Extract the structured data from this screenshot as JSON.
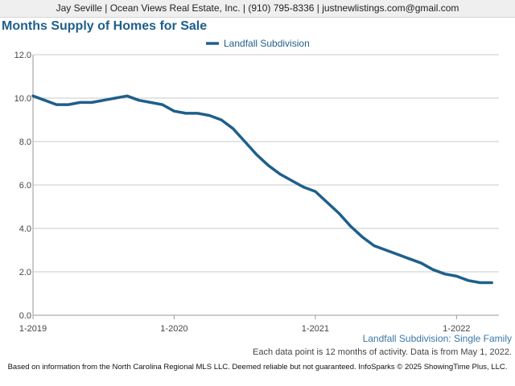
{
  "header": {
    "contact_line": "Jay Seville | Ocean Views Real Estate, Inc. | (910) 795-8336 | justnewlistings.com@gmail.com"
  },
  "chart_title": "Months Supply of Homes for Sale",
  "chart_subtitle": "Landfall Subdivision: Single Family",
  "note": "Each data point is 12 months of activity. Data is from May 1, 2022.",
  "footer": "Based on information from the North Carolina Regional MLS LLC. Deemed reliable but not guaranteed. InfoSparks © 2025 ShowingTime Plus, LLC.",
  "chart_data": {
    "type": "line",
    "x": [
      "2019-01",
      "2019-02",
      "2019-03",
      "2019-04",
      "2019-05",
      "2019-06",
      "2019-07",
      "2019-08",
      "2019-09",
      "2019-10",
      "2019-11",
      "2019-12",
      "2020-01",
      "2020-02",
      "2020-03",
      "2020-04",
      "2020-05",
      "2020-06",
      "2020-07",
      "2020-08",
      "2020-09",
      "2020-10",
      "2020-11",
      "2020-12",
      "2021-01",
      "2021-02",
      "2021-03",
      "2021-04",
      "2021-05",
      "2021-06",
      "2021-07",
      "2021-08",
      "2021-09",
      "2021-10",
      "2021-11",
      "2021-12",
      "2022-01",
      "2022-02",
      "2022-03",
      "2022-04"
    ],
    "x_tick_labels": [
      "1-2019",
      "1-2020",
      "1-2021",
      "1-2022"
    ],
    "series": [
      {
        "name": "Landfall Subdivision",
        "color": "#1f5f8b",
        "values": [
          10.1,
          9.9,
          9.7,
          9.7,
          9.8,
          9.8,
          9.9,
          10.0,
          10.1,
          9.9,
          9.8,
          9.7,
          9.4,
          9.3,
          9.3,
          9.2,
          9.0,
          8.6,
          8.0,
          7.4,
          6.9,
          6.5,
          6.2,
          5.9,
          5.7,
          5.2,
          4.7,
          4.1,
          3.6,
          3.2,
          3.0,
          2.8,
          2.6,
          2.4,
          2.1,
          1.9,
          1.8,
          1.6,
          1.5,
          1.5
        ]
      }
    ],
    "y_ticks": [
      "0.0",
      "2.0",
      "4.0",
      "6.0",
      "8.0",
      "10.0",
      "12.0"
    ],
    "ylim": [
      0,
      12
    ],
    "legend_position": "top-center",
    "grid": true
  }
}
